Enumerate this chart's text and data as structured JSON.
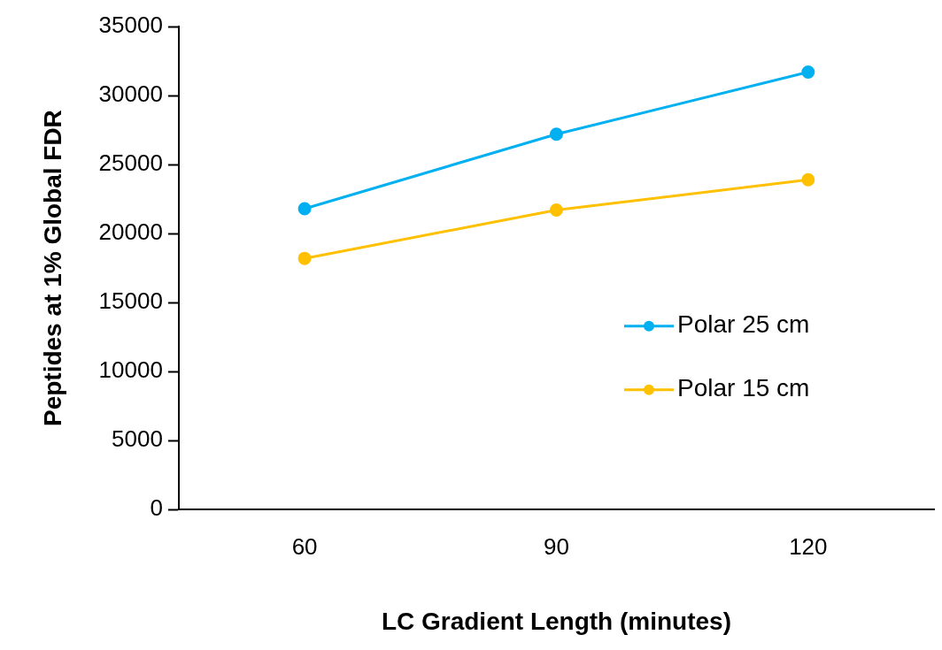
{
  "chart_data": {
    "type": "line",
    "xlabel": "LC Gradient Length (minutes)",
    "ylabel": "Peptides at 1% Global FDR",
    "categories": [
      "60",
      "90",
      "120"
    ],
    "series": [
      {
        "name": "Polar 25 cm",
        "color": "#00b0f0",
        "values": [
          21800,
          27200,
          31700
        ]
      },
      {
        "name": "Polar 15 cm",
        "color": "#ffc000",
        "values": [
          18200,
          21700,
          23900
        ]
      }
    ],
    "ylim": [
      0,
      35000
    ],
    "yticks": [
      0,
      5000,
      10000,
      15000,
      20000,
      25000,
      30000,
      35000
    ],
    "grid": false,
    "legend": "right",
    "marker": "circle",
    "line_style": "solid"
  }
}
